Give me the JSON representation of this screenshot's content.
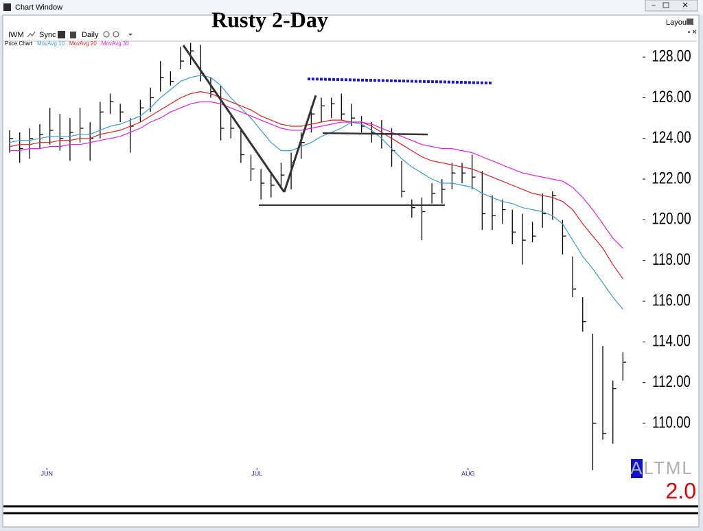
{
  "window": {
    "title": "Chart Window",
    "toolbar": {
      "symbol": "IWM",
      "sync": "Sync",
      "period": "Daily"
    },
    "layout": "Layout"
  },
  "chart_data": {
    "type": "ohlc",
    "title": "Rusty 2-Day",
    "xlim": [
      -0.96,
      62
    ],
    "xticks": [
      {
        "value": 3.7,
        "label": "JUN"
      },
      {
        "value": 24.6,
        "label": "JUL"
      },
      {
        "value": 45.6,
        "label": "AUG"
      }
    ],
    "ylim": [
      106.19,
      128.78
    ],
    "yticks": [
      {
        "value": 110,
        "label": "110.00"
      },
      {
        "value": 112,
        "label": "112.00"
      },
      {
        "value": 114,
        "label": "114.00"
      },
      {
        "value": 116,
        "label": "116.00"
      },
      {
        "value": 118,
        "label": "118.00"
      },
      {
        "value": 120,
        "label": "120.00"
      },
      {
        "value": 122,
        "label": "122.00"
      },
      {
        "value": 124,
        "label": "124.00"
      },
      {
        "value": 126,
        "label": "126.00"
      },
      {
        "value": 128,
        "label": "128.00"
      }
    ],
    "series": [
      {
        "name": "Price Chart",
        "color": "#000000",
        "high": [
          124.4,
          124.3,
          124.5,
          124.7,
          125.5,
          125.2,
          125.0,
          125.5,
          124.8,
          125.8,
          126.2,
          125.7,
          125.0,
          125.9,
          126.5,
          127.8,
          127.3,
          128.5,
          128.7,
          128.6,
          127.0,
          126.6,
          125.1,
          124.5,
          123.2,
          122.5,
          122.3,
          122.8,
          123.3,
          124.3,
          125.6,
          126.0,
          126.0,
          126.2,
          125.7,
          125.1,
          124.8,
          124.9,
          124.5,
          122.9,
          121.0,
          121.1,
          121.8,
          122.0,
          122.8,
          122.8,
          123.2,
          122.4,
          121.2,
          121.0,
          120.5,
          120.3,
          119.9,
          121.3,
          121.4,
          120.0,
          118.2,
          116.2,
          114.4,
          113.8,
          112.1,
          113.5
        ],
        "low": [
          123.3,
          122.8,
          123.0,
          123.5,
          123.7,
          123.4,
          122.9,
          123.8,
          122.9,
          124.0,
          125.2,
          124.8,
          123.3,
          124.8,
          125.3,
          126.3,
          126.6,
          127.4,
          127.6,
          126.8,
          126.0,
          123.9,
          124.0,
          122.8,
          121.9,
          121.0,
          121.1,
          121.5,
          121.5,
          123.0,
          124.3,
          124.8,
          125.0,
          124.9,
          124.6,
          124.3,
          123.8,
          123.5,
          122.6,
          121.1,
          120.1,
          119.0,
          120.8,
          120.8,
          121.5,
          121.8,
          121.5,
          119.5,
          119.5,
          119.8,
          118.8,
          117.8,
          118.9,
          119.6,
          120.0,
          118.3,
          116.2,
          114.5,
          107.7,
          109.2,
          109.0,
          112.1
        ],
        "close": [
          124.0,
          123.5,
          124.0,
          124.2,
          124.4,
          124.0,
          124.3,
          124.5,
          124.0,
          125.3,
          125.8,
          125.3,
          124.6,
          125.5,
          126.0,
          127.0,
          126.8,
          127.8,
          128.3,
          127.2,
          126.3,
          124.5,
          124.5,
          123.2,
          122.5,
          121.8,
          121.7,
          122.2,
          122.8,
          123.8,
          125.2,
          125.6,
          125.7,
          125.2,
          125.0,
          124.6,
          124.3,
          124.2,
          123.4,
          121.4,
          120.6,
          120.4,
          121.3,
          121.5,
          122.3,
          122.3,
          122.1,
          120.3,
          120.2,
          120.5,
          119.4,
          119.0,
          119.2,
          120.3,
          121.2,
          119.2,
          116.6,
          115.0,
          110.0,
          109.5,
          111.7,
          113.0
        ]
      },
      {
        "name": "MovAvg 10",
        "color": "#3a9ad9",
        "values": [
          123.8,
          123.9,
          123.9,
          124.0,
          124.1,
          124.1,
          124.1,
          124.2,
          124.2,
          124.4,
          124.6,
          124.7,
          124.9,
          125.1,
          125.5,
          126.0,
          126.4,
          126.8,
          127.0,
          127.1,
          127.0,
          126.6,
          126.0,
          125.5,
          125.0,
          124.4,
          123.8,
          123.4,
          123.4,
          123.6,
          123.8,
          124.1,
          124.3,
          124.5,
          124.8,
          124.7,
          124.4,
          124.0,
          123.5,
          123.0,
          122.6,
          122.3,
          122.0,
          121.8,
          121.8,
          121.7,
          121.6,
          121.3,
          121.1,
          120.9,
          120.8,
          120.6,
          120.5,
          120.4,
          120.2,
          119.8,
          119.0,
          118.2,
          117.6,
          116.9,
          116.2,
          115.6
        ]
      },
      {
        "name": "MovAvg 20",
        "color": "#e02020",
        "values": [
          123.6,
          123.7,
          123.7,
          123.8,
          123.8,
          123.9,
          123.9,
          124.0,
          124.0,
          124.2,
          124.3,
          124.4,
          124.6,
          124.8,
          125.1,
          125.4,
          125.7,
          126.0,
          126.2,
          126.3,
          126.2,
          126.0,
          125.8,
          125.6,
          125.4,
          125.1,
          124.9,
          124.7,
          124.6,
          124.6,
          124.7,
          124.8,
          124.9,
          124.9,
          124.8,
          124.8,
          124.6,
          124.3,
          124.0,
          123.7,
          123.4,
          123.1,
          122.9,
          122.8,
          122.7,
          122.6,
          122.5,
          122.3,
          122.1,
          121.9,
          121.7,
          121.5,
          121.3,
          121.2,
          121.1,
          120.9,
          120.5,
          119.8,
          119.2,
          118.6,
          117.8,
          117.1
        ]
      },
      {
        "name": "MovAvg 30",
        "color": "#e020e0",
        "values": [
          123.4,
          123.4,
          123.5,
          123.5,
          123.6,
          123.6,
          123.7,
          123.7,
          123.8,
          123.9,
          124.0,
          124.1,
          124.3,
          124.5,
          124.8,
          125.0,
          125.3,
          125.5,
          125.7,
          125.8,
          125.8,
          125.7,
          125.5,
          125.3,
          125.1,
          124.9,
          124.7,
          124.5,
          124.4,
          124.4,
          124.5,
          124.6,
          124.7,
          124.8,
          124.8,
          124.8,
          124.7,
          124.5,
          124.3,
          124.1,
          123.9,
          123.7,
          123.6,
          123.5,
          123.5,
          123.4,
          123.3,
          123.1,
          122.9,
          122.7,
          122.5,
          122.3,
          122.2,
          122.1,
          122.0,
          121.9,
          121.6,
          121.1,
          120.5,
          119.8,
          119.1,
          118.6
        ]
      }
    ],
    "indicator": {
      "name": "ALTML",
      "value": "2.0"
    }
  }
}
